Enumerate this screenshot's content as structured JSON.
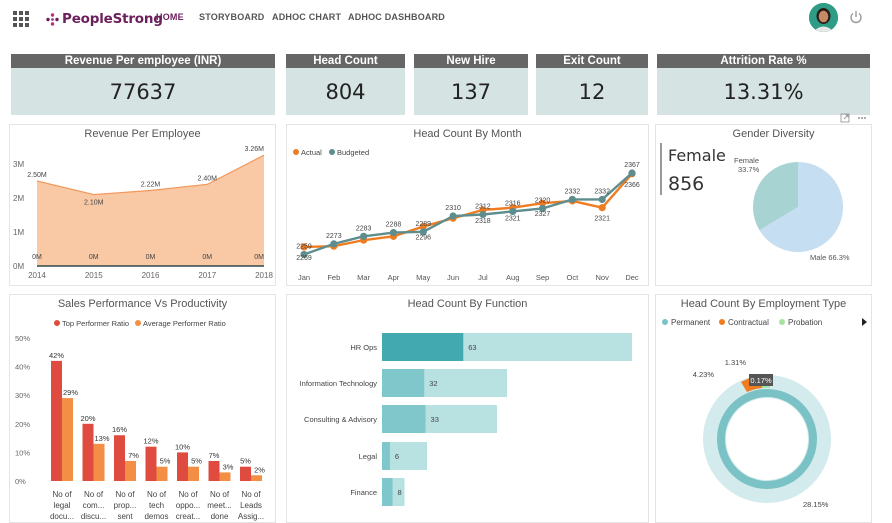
{
  "brand": {
    "name": "PeopleStrong",
    "accent": "#6b1f5b"
  },
  "nav": [
    {
      "label": "HOME",
      "active": true
    },
    {
      "label": "STORYBOARD",
      "active": false
    },
    {
      "label": "ADHOC CHART",
      "active": false
    },
    {
      "label": "ADHOC DASHBOARD",
      "active": false
    }
  ],
  "kpis": [
    {
      "title": "Revenue Per employee (INR)",
      "value": "77637"
    },
    {
      "title": "Head Count",
      "value": "804"
    },
    {
      "title": "New Hire",
      "value": "137"
    },
    {
      "title": "Exit Count",
      "value": "12"
    },
    {
      "title": "Attrition Rate %",
      "value": "13.31%"
    }
  ],
  "gender": {
    "title": "Gender Diversity",
    "label": "Female",
    "count": "856"
  },
  "chart_data": [
    {
      "id": "revenue",
      "type": "area",
      "title": "Revenue Per Employee",
      "x": [
        "2014",
        "2015",
        "2016",
        "2017",
        "2018"
      ],
      "series": [
        {
          "name": "Revenue",
          "values": [
            2.5,
            2.1,
            2.22,
            2.4,
            3.26
          ],
          "labels": [
            "2.50M",
            "2.10M",
            "2.22M",
            "2.40M",
            "3.26M"
          ]
        },
        {
          "name": "Baseline",
          "values": [
            0,
            0,
            0,
            0,
            0
          ],
          "labels": [
            "0M",
            "0M",
            "0M",
            "0M",
            "0M"
          ]
        }
      ],
      "yticks": [
        "0M",
        "1M",
        "2M",
        "3M"
      ],
      "ylim": [
        0,
        3.5
      ],
      "colors": [
        "#f9c9a6",
        "#f29a5d",
        "#2e4a4a"
      ]
    },
    {
      "id": "headcount_month",
      "type": "line",
      "title": "Head Count By Month",
      "x": [
        "Jan",
        "Feb",
        "Mar",
        "Apr",
        "May",
        "Jun",
        "Jul",
        "Aug",
        "Sep",
        "Oct",
        "Nov",
        "Dec"
      ],
      "series": [
        {
          "name": "Actual",
          "color": "#f07c22",
          "values": [
            2269,
            2270,
            2278,
            2283,
            2296,
            2307,
            2318,
            2321,
            2327,
            2330,
            2321,
            2366
          ]
        },
        {
          "name": "Budgeted",
          "color": "#5d8d8c",
          "values": [
            2259,
            2273,
            2283,
            2288,
            2289,
            2310,
            2312,
            2316,
            2320,
            2332,
            2332,
            2367
          ]
        }
      ],
      "actual_labels": [
        {
          "i": 0,
          "t": "2269"
        },
        {
          "i": 4,
          "t": "2296"
        },
        {
          "i": 6,
          "t": "2318"
        },
        {
          "i": 7,
          "t": "2321"
        },
        {
          "i": 8,
          "t": "2327"
        },
        {
          "i": 10,
          "t": "2321"
        },
        {
          "i": 11,
          "t": "2366"
        }
      ],
      "budget_labels": [
        {
          "i": 0,
          "t": "2259"
        },
        {
          "i": 1,
          "t": "2273"
        },
        {
          "i": 2,
          "t": "2283"
        },
        {
          "i": 3,
          "t": "2288"
        },
        {
          "i": 4,
          "t": "2289"
        },
        {
          "i": 5,
          "t": "2310"
        },
        {
          "i": 6,
          "t": "2312"
        },
        {
          "i": 7,
          "t": "2316"
        },
        {
          "i": 8,
          "t": "2320"
        },
        {
          "i": 9,
          "t": "2332"
        },
        {
          "i": 10,
          "t": "2332"
        },
        {
          "i": 11,
          "t": "2367"
        }
      ],
      "ylim": [
        2245,
        2375
      ]
    },
    {
      "id": "gender",
      "type": "pie",
      "title": "Gender Diversity",
      "slices": [
        {
          "name": "Female",
          "value": 33.7,
          "label": "Female",
          "pct": "33.7%",
          "color": "#a8d3d3"
        },
        {
          "name": "Male",
          "value": 66.3,
          "label": "Male 66.3%",
          "color": "#c5def2"
        }
      ]
    },
    {
      "id": "sales",
      "type": "bar",
      "title": "Sales Performance Vs Productivity",
      "categories": [
        [
          "No of",
          "legal",
          "docu..."
        ],
        [
          "No of",
          "com...",
          "discu..."
        ],
        [
          "No of",
          "prop...",
          "sent"
        ],
        [
          "No of",
          "tech",
          "demos"
        ],
        [
          "No of",
          "oppo...",
          "creat..."
        ],
        [
          "No of",
          "meet...",
          "done"
        ],
        [
          "No of",
          "Leads",
          "Assig..."
        ]
      ],
      "series": [
        {
          "name": "Top Performer Ratio",
          "color": "#df4c3f",
          "values": [
            42,
            20,
            16,
            12,
            10,
            7,
            5
          ]
        },
        {
          "name": "Average Performer Ratio",
          "color": "#f38f44",
          "values": [
            29,
            13,
            7,
            5,
            5,
            3,
            2
          ]
        }
      ],
      "yticks": [
        "0%",
        "10%",
        "20%",
        "30%",
        "40%",
        "50%"
      ],
      "ylim": [
        0,
        50
      ]
    },
    {
      "id": "function",
      "type": "bar",
      "title": "Head Count By Function",
      "categories": [
        "HR Ops",
        "Information Technology",
        "Consulting & Advisory",
        "Legal",
        "Finance"
      ],
      "values": [
        63,
        32,
        33,
        6,
        8
      ],
      "totals": [
        100,
        50,
        46,
        18,
        9
      ],
      "colors": [
        "#41a9af",
        "#7fc7ca",
        "#b8e1e2"
      ]
    },
    {
      "id": "employment",
      "type": "pie",
      "title": "Head Count By Employment Type",
      "legend": [
        {
          "name": "Permanent",
          "color": "#7ac2c6"
        },
        {
          "name": "Contractual",
          "color": "#f07c22"
        },
        {
          "name": "Probation",
          "color": "#a6e2a0"
        }
      ],
      "labels": [
        "1.31%",
        "4.23%",
        "0.17%",
        "28.15%"
      ]
    }
  ]
}
